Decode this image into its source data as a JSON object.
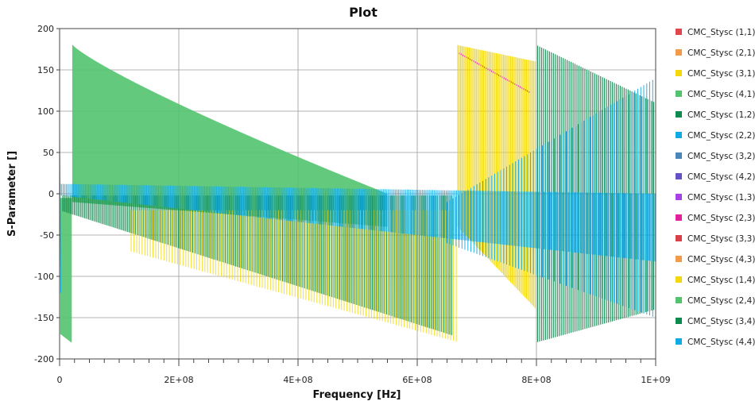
{
  "chart_data": {
    "type": "line",
    "title": "Plot",
    "xlabel": "Frequency [Hz]",
    "ylabel": "S-Parameter []",
    "xlim": [
      0,
      1000000000
    ],
    "ylim": [
      -200,
      200
    ],
    "x_ticks": [
      0,
      200000000,
      400000000,
      600000000,
      800000000,
      1000000000
    ],
    "x_tick_labels": [
      "0",
      "2E+08",
      "4E+08",
      "6E+08",
      "8E+08",
      "1E+09"
    ],
    "y_ticks": [
      -200,
      -150,
      -100,
      -50,
      0,
      50,
      100,
      150,
      200
    ],
    "y_tick_labels": [
      "-200",
      "-150",
      "-100",
      "-50",
      "0",
      "50",
      "100",
      "150",
      "200"
    ],
    "grid": true,
    "legend_position": "right",
    "series": [
      {
        "name": "CMC_Stysc (1,1)",
        "color": "#e0464b"
      },
      {
        "name": "CMC_Stysc (2,1)",
        "color": "#f39a4a"
      },
      {
        "name": "CMC_Stysc (3,1)",
        "color": "#f2d80c"
      },
      {
        "name": "CMC_Stysc (4,1)",
        "color": "#52c46f"
      },
      {
        "name": "CMC_Stysc (1,2)",
        "color": "#0f8a4f"
      },
      {
        "name": "CMC_Stysc (2,2)",
        "color": "#12a9e6"
      },
      {
        "name": "CMC_Stysc (3,2)",
        "color": "#4a86b8"
      },
      {
        "name": "CMC_Stysc (4,2)",
        "color": "#6451c8"
      },
      {
        "name": "CMC_Stysc (1,3)",
        "color": "#a743e3"
      },
      {
        "name": "CMC_Stysc (2,3)",
        "color": "#e0239b"
      },
      {
        "name": "CMC_Stysc (3,3)",
        "color": "#d8404a"
      },
      {
        "name": "CMC_Stysc (4,3)",
        "color": "#f39a4a"
      },
      {
        "name": "CMC_Stysc (1,4)",
        "color": "#f2d80c"
      },
      {
        "name": "CMC_Stysc (2,4)",
        "color": "#52c46f"
      },
      {
        "name": "CMC_Stysc (3,4)",
        "color": "#0f8a4f"
      },
      {
        "name": "CMC_Stysc (4,4)",
        "color": "#12a9e6"
      }
    ]
  }
}
